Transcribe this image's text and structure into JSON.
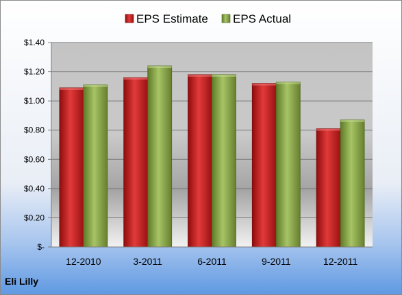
{
  "company": "Eli Lilly",
  "chart_data": {
    "type": "bar",
    "categories": [
      "12-2010",
      "3-2011",
      "6-2011",
      "9-2011",
      "12-2011"
    ],
    "series": [
      {
        "name": "EPS Estimate",
        "color": "#cc1f1f",
        "values": [
          1.09,
          1.16,
          1.18,
          1.12,
          0.81
        ]
      },
      {
        "name": "EPS Actual",
        "color": "#8fae4a",
        "values": [
          1.11,
          1.24,
          1.18,
          1.13,
          0.87
        ]
      }
    ],
    "title": "",
    "xlabel": "",
    "ylabel": "",
    "ylim": [
      0,
      1.4
    ],
    "yticks": [
      0,
      0.2,
      0.4,
      0.6,
      0.8,
      1.0,
      1.2,
      1.4
    ],
    "ytick_labels": [
      "$-",
      "$0.20",
      "$0.40",
      "$0.60",
      "$0.80",
      "$1.00",
      "$1.20",
      "$1.40"
    ],
    "grid": true,
    "legend": "top-center"
  }
}
